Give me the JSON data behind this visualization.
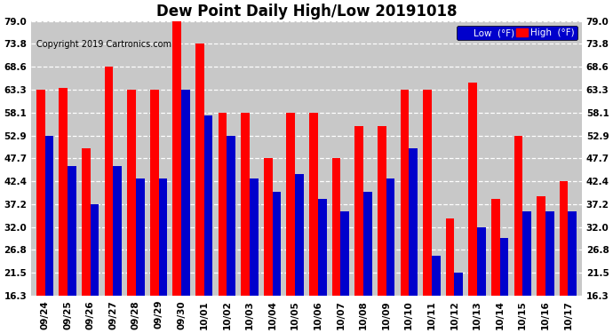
{
  "title": "Dew Point Daily High/Low 20191018",
  "copyright": "Copyright 2019 Cartronics.com",
  "dates": [
    "09/24",
    "09/25",
    "09/26",
    "09/27",
    "09/28",
    "09/29",
    "09/30",
    "10/01",
    "10/02",
    "10/03",
    "10/04",
    "10/05",
    "10/06",
    "10/07",
    "10/08",
    "10/09",
    "10/10",
    "10/11",
    "10/12",
    "10/13",
    "10/14",
    "10/15",
    "10/16",
    "10/17"
  ],
  "high": [
    63.3,
    63.8,
    50.0,
    68.6,
    63.3,
    63.3,
    79.0,
    73.8,
    58.1,
    58.1,
    47.7,
    58.1,
    58.1,
    47.7,
    55.0,
    55.0,
    63.3,
    63.3,
    34.0,
    65.0,
    38.5,
    52.9,
    39.0,
    42.4
  ],
  "low": [
    52.9,
    46.0,
    37.2,
    46.0,
    43.0,
    43.0,
    63.3,
    57.5,
    52.9,
    43.0,
    40.0,
    44.0,
    38.5,
    35.5,
    40.0,
    43.0,
    50.0,
    25.5,
    21.5,
    32.0,
    29.5,
    35.5,
    35.5,
    35.5
  ],
  "ylim": [
    16.3,
    79.0
  ],
  "yticks": [
    16.3,
    21.5,
    26.8,
    32.0,
    37.2,
    42.4,
    47.7,
    52.9,
    58.1,
    63.3,
    68.6,
    73.8,
    79.0
  ],
  "bar_width": 0.38,
  "high_color": "#FF0000",
  "low_color": "#0000CC",
  "bg_color": "#FFFFFF",
  "grid_color": "#FFFFFF",
  "plot_bg_color": "#C8C8C8",
  "title_fontsize": 12,
  "copyright_fontsize": 7,
  "legend_high_color": "#FF0000",
  "legend_low_color": "#0000CC"
}
